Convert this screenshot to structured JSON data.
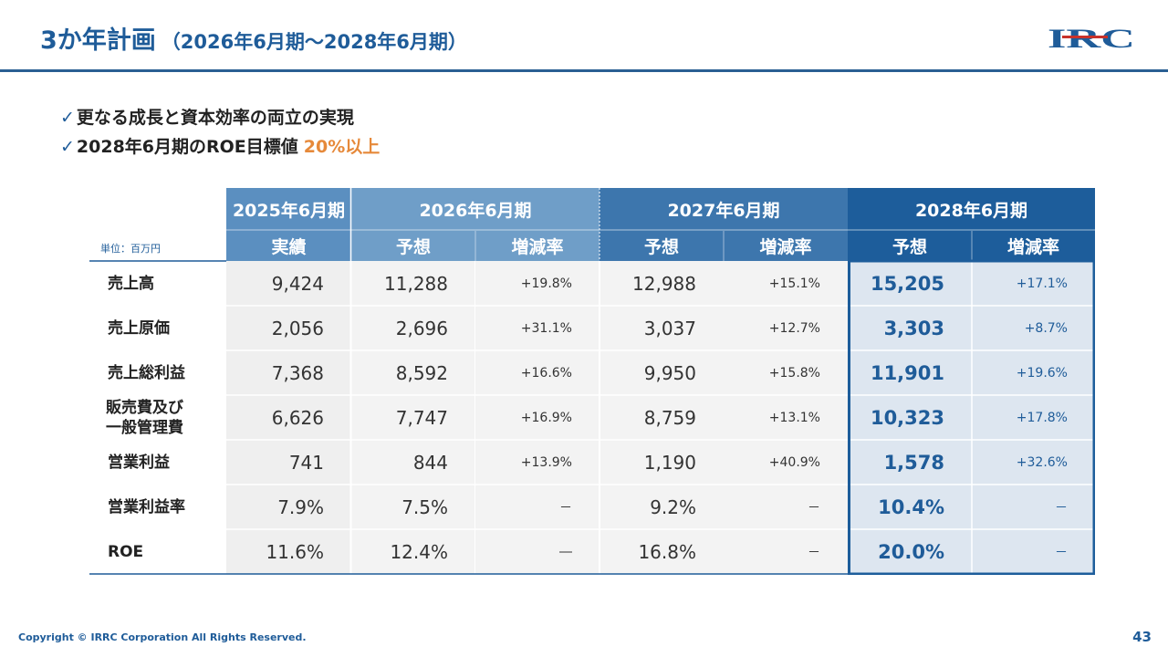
{
  "header": {
    "title": "3か年計画",
    "subtitle": "（2026年6月期～2028年6月期）",
    "logo_text": "IRC"
  },
  "bullets": {
    "check": "✓",
    "line1": "更なる成長と資本効率の両立の実現",
    "line2_prefix": "2028年6月期のROE目標値",
    "line2_highlight": "20%以上"
  },
  "table": {
    "unit_label": "単位：百万円",
    "periods": [
      "2025年6月期",
      "2026年6月期",
      "2027年6月期",
      "2028年6月期"
    ],
    "subheaders": [
      "実績",
      "予想",
      "増減率",
      "予想",
      "増減率",
      "予想",
      "増減率"
    ],
    "rows": [
      {
        "label": "売上高",
        "label2": "",
        "cells": [
          "9,424",
          "11,288",
          "+19.8%",
          "12,988",
          "+15.1%",
          "15,205",
          "+17.1%"
        ]
      },
      {
        "label": "売上原価",
        "label2": "",
        "cells": [
          "2,056",
          "2,696",
          "+31.1%",
          "3,037",
          "+12.7%",
          "3,303",
          "+8.7%"
        ]
      },
      {
        "label": "売上総利益",
        "label2": "",
        "cells": [
          "7,368",
          "8,592",
          "+16.6%",
          "9,950",
          "+15.8%",
          "11,901",
          "+19.6%"
        ]
      },
      {
        "label": "販売費及び",
        "label2": "一般管理費",
        "cells": [
          "6,626",
          "7,747",
          "+16.9%",
          "8,759",
          "+13.1%",
          "10,323",
          "+17.8%"
        ]
      },
      {
        "label": "営業利益",
        "label2": "",
        "cells": [
          "741",
          "844",
          "+13.9%",
          "1,190",
          "+40.9%",
          "1,578",
          "+32.6%"
        ]
      },
      {
        "label": "営業利益率",
        "label2": "",
        "cells": [
          "7.9%",
          "7.5%",
          "－",
          "9.2%",
          "－",
          "10.4%",
          "－"
        ]
      },
      {
        "label": "ROE",
        "label2": "",
        "cells": [
          "11.6%",
          "12.4%",
          "―",
          "16.8%",
          "－",
          "20.0%",
          "－"
        ]
      }
    ]
  },
  "colors": {
    "title": "#1f5c99",
    "rule": "#2a5f93",
    "highlight": "#e6893a",
    "hdr_2025": "#5b8fc0",
    "hdr_2026": "#6f9ec8",
    "hdr_2027": "#3d76ad",
    "hdr_2028": "#1d5d9b",
    "border_2028": "#1d5d9b"
  },
  "footer": {
    "copyright": "Copyright © IRRC Corporation All Rights Reserved.",
    "page_number": "43"
  }
}
